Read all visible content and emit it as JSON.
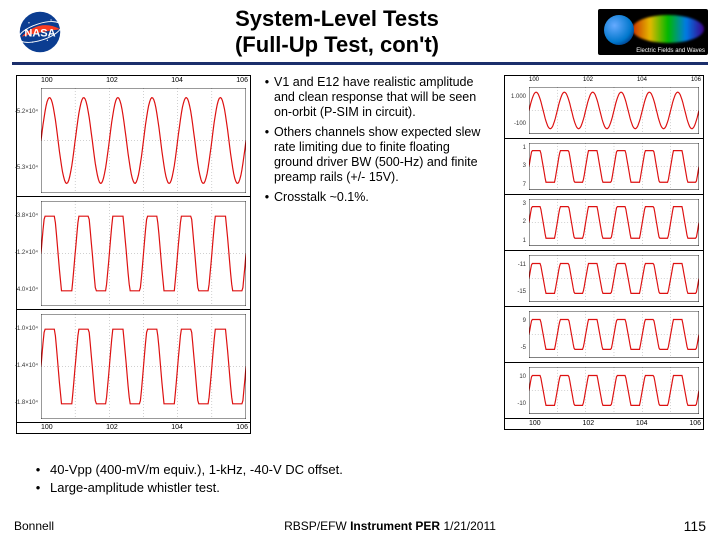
{
  "colors": {
    "accent": "#1b2e6b",
    "waveform": "#d11",
    "grid": "#888",
    "axis": "#000"
  },
  "header": {
    "title_line1": "System-Level Tests",
    "title_line2": "(Full-Up Test, con't)",
    "rbsp_label": "Electric Fields and Waves"
  },
  "bullets_inner": [
    "V1 and E12 have realistic amplitude and clean response that will be seen on-orbit (P-SIM in circuit).",
    "Others channels show expected slew rate limiting due to finite floating ground driver BW (500-Hz) and finite preamp rails (+/- 15V).",
    "Crosstalk ~0.1%."
  ],
  "bullets_outer": [
    "40-Vpp (400-mV/m equiv.), 1-kHz, -40-V DC offset.",
    "Large-amplitude whistler test."
  ],
  "left_chart": {
    "type": "line",
    "xticks": [
      "100",
      "102",
      "104",
      "106"
    ],
    "panels": [
      {
        "yticks": [
          "-5.2×10⁴",
          "-5.3×10⁴"
        ],
        "style": "clean_sine",
        "amp": 0.85,
        "cycles": 6
      },
      {
        "yticks": [
          "-3.8×10⁴",
          "-1.2×10⁴",
          "4.0×10⁴"
        ],
        "style": "clipped_sine",
        "amp": 0.9,
        "cycles": 6
      },
      {
        "yticks": [
          "-1.0×10⁴",
          "-1.4×10⁴",
          "-1.8×10⁴"
        ],
        "style": "clipped_sine",
        "amp": 0.9,
        "cycles": 6
      }
    ]
  },
  "right_chart": {
    "type": "line",
    "xticks": [
      "100",
      "102",
      "104",
      "106"
    ],
    "panels": [
      {
        "yticks": [
          "1.000",
          "-100"
        ],
        "style": "clean_sine",
        "amp": 0.85,
        "cycles": 6
      },
      {
        "yticks": [
          "1",
          "3",
          "7"
        ],
        "style": "clipped_sine",
        "amp": 0.9,
        "cycles": 6
      },
      {
        "yticks": [
          "3",
          "2",
          "1"
        ],
        "style": "clipped_sine",
        "amp": 0.9,
        "cycles": 6
      },
      {
        "yticks": [
          "-11",
          "-15"
        ],
        "style": "clipped_sine",
        "amp": 0.85,
        "cycles": 6
      },
      {
        "yticks": [
          "9",
          "-5"
        ],
        "style": "clipped_sine",
        "amp": 0.85,
        "cycles": 6
      },
      {
        "yticks": [
          "10",
          "-10"
        ],
        "style": "clipped_sine",
        "amp": 0.85,
        "cycles": 6
      }
    ]
  },
  "footer": {
    "author": "Bonnell",
    "mid_pre": "RBSP/EFW ",
    "mid_bold": "Instrument PER ",
    "mid_post": "1/21/2011",
    "page": "115"
  }
}
